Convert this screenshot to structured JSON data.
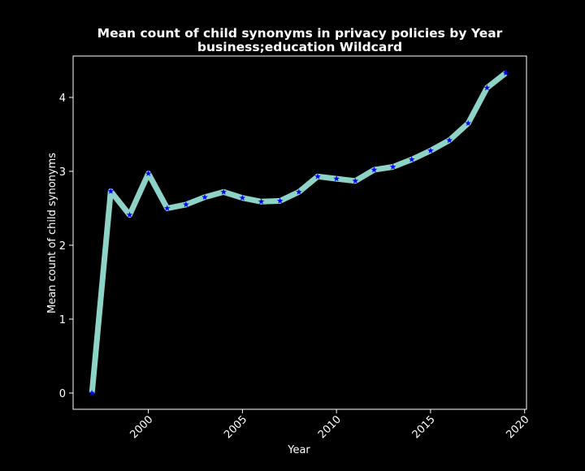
{
  "chart_data": {
    "type": "line",
    "title": "Mean count of child synonyms in privacy policies by Year",
    "subtitle": "business;education Wildcard",
    "xlabel": "Year",
    "ylabel": "Mean count of child synonyms",
    "xlim": [
      1996.0,
      2020.1
    ],
    "ylim": [
      -0.22,
      4.56
    ],
    "x_ticks": [
      2000,
      2005,
      2010,
      2015,
      2020
    ],
    "x_tick_labels": [
      "2000",
      "2005",
      "2010",
      "2015",
      "2020"
    ],
    "y_ticks": [
      0,
      1,
      2,
      3,
      4
    ],
    "y_tick_labels": [
      "0",
      "1",
      "2",
      "3",
      "4"
    ],
    "grid": false,
    "colors": {
      "background": "#000000",
      "line": "#8dd3c7",
      "marker": "#0000ff",
      "text": "#ffffff",
      "axes": "#ffffff"
    },
    "series": [
      {
        "x": [
          1997,
          1998,
          1999,
          2000,
          2001,
          2002,
          2003,
          2004,
          2005,
          2006,
          2007,
          2008,
          2009,
          2010,
          2011,
          2012,
          2013,
          2014,
          2015,
          2016,
          2017,
          2018,
          2019
        ],
        "values": [
          0.0,
          2.73,
          2.41,
          2.97,
          2.5,
          2.55,
          2.65,
          2.72,
          2.64,
          2.59,
          2.6,
          2.72,
          2.93,
          2.9,
          2.87,
          3.02,
          3.06,
          3.16,
          3.28,
          3.42,
          3.65,
          4.13,
          4.33
        ]
      }
    ]
  }
}
